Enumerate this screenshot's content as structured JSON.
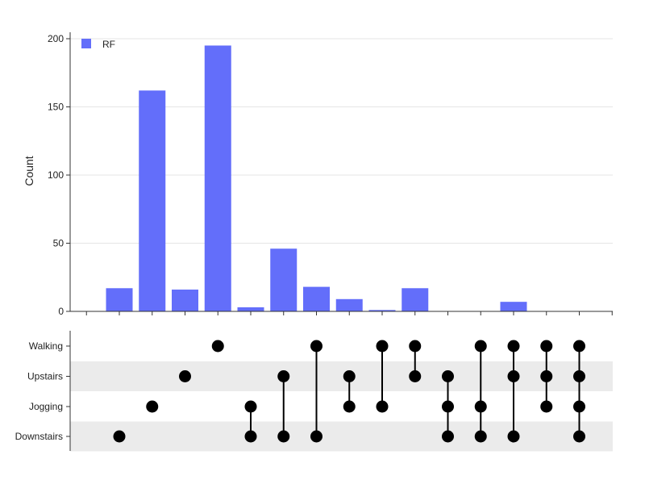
{
  "chart_data": {
    "type": "bar",
    "chart_kind": "upset plot",
    "ylabel": "Count",
    "ylim": [
      0,
      205
    ],
    "yticks": [
      0,
      50,
      100,
      150,
      200
    ],
    "grid": true,
    "legend_position": "top-left",
    "series": [
      {
        "name": "RF",
        "color": "#636efa",
        "values": [
          17,
          162,
          16,
          195,
          3,
          46,
          18,
          9,
          1,
          17,
          0,
          0,
          7,
          0,
          0
        ]
      }
    ],
    "set_labels": [
      "Walking",
      "Upstairs",
      "Jogging",
      "Downstairs"
    ],
    "combinations": [
      [
        "Downstairs"
      ],
      [
        "Jogging"
      ],
      [
        "Upstairs"
      ],
      [
        "Walking"
      ],
      [
        "Jogging",
        "Downstairs"
      ],
      [
        "Upstairs",
        "Downstairs"
      ],
      [
        "Walking",
        "Downstairs"
      ],
      [
        "Upstairs",
        "Jogging"
      ],
      [
        "Walking",
        "Jogging"
      ],
      [
        "Walking",
        "Upstairs"
      ],
      [
        "Upstairs",
        "Jogging",
        "Downstairs"
      ],
      [
        "Walking",
        "Jogging",
        "Downstairs"
      ],
      [
        "Walking",
        "Upstairs",
        "Downstairs"
      ],
      [
        "Walking",
        "Upstairs",
        "Jogging"
      ],
      [
        "Walking",
        "Upstairs",
        "Jogging",
        "Downstairs"
      ]
    ],
    "matrix_band_color": "#ebebeb",
    "dot_color": "#000000"
  }
}
